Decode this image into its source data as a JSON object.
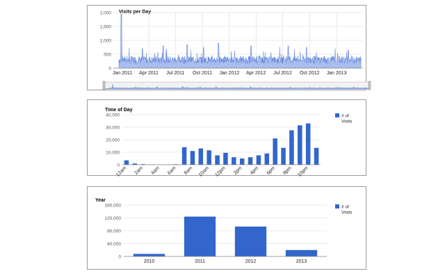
{
  "chart_data": [
    {
      "type": "area",
      "title": "Visits per Day",
      "xlabel": "",
      "ylabel": "",
      "x_tick_labels": [
        "Jan 2011",
        "Apr 2011",
        "Jul 2011",
        "Oct 2011",
        "Jan 2012",
        "Apr 2012",
        "Jul 2012",
        "Oct 2012",
        "Jan 2013"
      ],
      "y_tick_labels": [
        "2,000",
        "1,500",
        "1,000",
        "500",
        "0"
      ],
      "ylim": [
        0,
        2000
      ],
      "x_range": [
        "2010-12",
        "2013-04"
      ],
      "approx_baseline": 300,
      "peaks": [
        {
          "x": "2010-12-28",
          "y": 1950
        },
        {
          "x": "2011-03-10",
          "y": 700
        },
        {
          "x": "2011-05-20",
          "y": 800
        },
        {
          "x": "2011-08-10",
          "y": 850
        },
        {
          "x": "2011-10-05",
          "y": 750
        },
        {
          "x": "2011-11-25",
          "y": 900
        },
        {
          "x": "2012-03-15",
          "y": 800
        },
        {
          "x": "2012-07-20",
          "y": 800
        },
        {
          "x": "2012-09-20",
          "y": 750
        },
        {
          "x": "2013-02-10",
          "y": 650
        }
      ],
      "grid": true,
      "color": "#5a7fd6",
      "has_range_selector": true
    },
    {
      "type": "bar",
      "title": "Time of Day",
      "xlabel": "",
      "ylabel": "",
      "categories": [
        "12am",
        "1am",
        "2am",
        "3am",
        "4am",
        "5am",
        "6am",
        "7am",
        "8am",
        "9am",
        "10am",
        "11am",
        "12pm",
        "1pm",
        "2pm",
        "3pm",
        "4pm",
        "5pm",
        "6pm",
        "7pm",
        "8pm",
        "9pm",
        "10pm",
        "11pm"
      ],
      "x_tick_labels": [
        "12am",
        "2am",
        "4am",
        "6am",
        "8am",
        "10am",
        "12pm",
        "2pm",
        "4pm",
        "6pm",
        "8pm",
        "10pm"
      ],
      "y_tick_labels": [
        "40,000",
        "30,000",
        "20,000",
        "10,000",
        "0"
      ],
      "series": [
        {
          "name": "# of Visits",
          "values": [
            3500,
            1000,
            500,
            200,
            200,
            200,
            400,
            14000,
            11000,
            13000,
            11500,
            7500,
            9500,
            6000,
            5000,
            6000,
            7500,
            9000,
            21000,
            13500,
            27500,
            31500,
            33000,
            13500
          ]
        }
      ],
      "ylim": [
        0,
        40000
      ],
      "grid": true,
      "legend": "right",
      "color": "#3366cc"
    },
    {
      "type": "bar",
      "title": "Year",
      "xlabel": "",
      "ylabel": "",
      "categories": [
        "2010",
        "2011",
        "2012",
        "2013"
      ],
      "y_tick_labels": [
        "160,000",
        "120,000",
        "80,000",
        "40,000",
        "0"
      ],
      "series": [
        {
          "name": "# of Visits",
          "values": [
            8000,
            124000,
            93000,
            20000
          ]
        }
      ],
      "ylim": [
        0,
        160000
      ],
      "grid": true,
      "legend": "right",
      "color": "#3366cc"
    }
  ]
}
